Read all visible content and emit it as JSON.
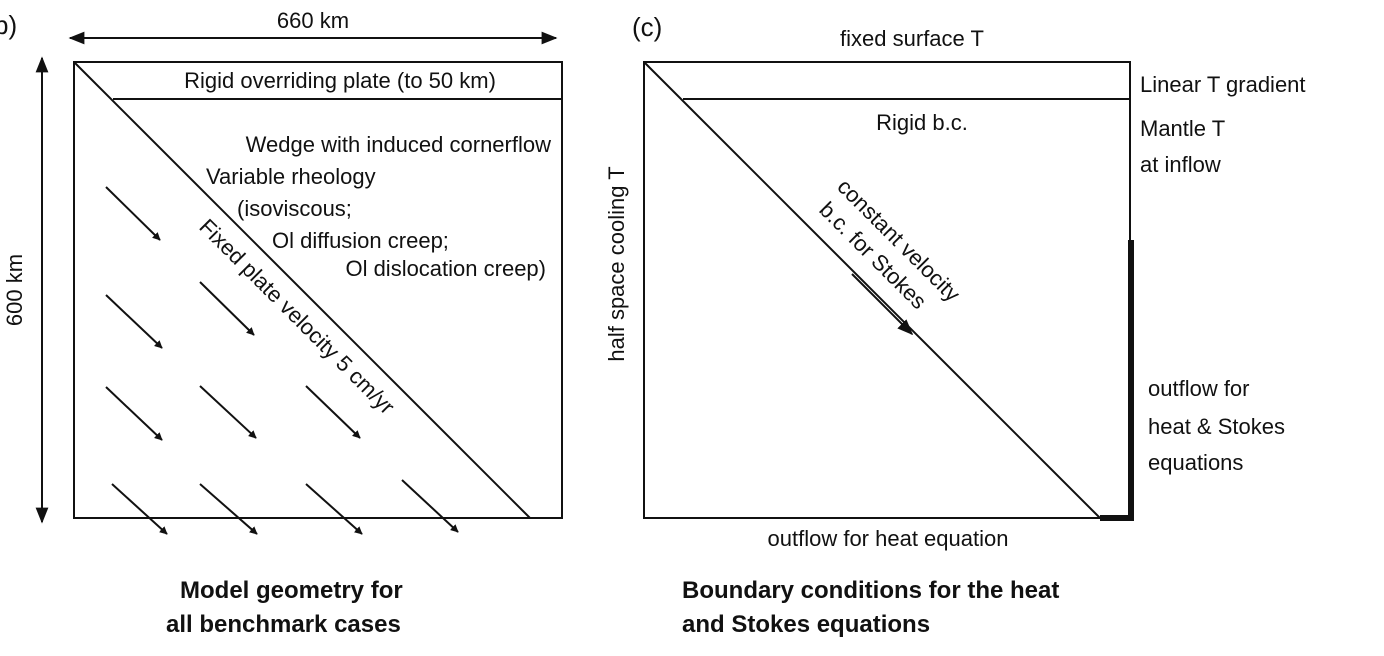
{
  "panel_b": {
    "panel_label": "b)",
    "width_label": "660 km",
    "height_label": "600 km",
    "plate_label": "Rigid overriding plate (to 50 km)",
    "wedge_lines": [
      "Wedge with induced cornerflow",
      "Variable rheology",
      "(isoviscous;",
      "Ol diffusion creep;",
      "Ol dislocation creep)"
    ],
    "slab_label": "Fixed plate velocity 5 cm/yr",
    "caption_lines": [
      "Model geometry for",
      "all benchmark cases"
    ]
  },
  "panel_c": {
    "panel_label": "(c)",
    "top_label": "fixed surface T",
    "left_label": "half space cooling T",
    "right_top_label": "Linear T gradient",
    "right_mid_lines": [
      "Mantle T",
      "at inflow"
    ],
    "rigid_label": "Rigid b.c.",
    "slab_lines": [
      "constant velocity",
      "b.c. for Stokes"
    ],
    "right_bottom_lines": [
      "outflow for",
      "heat & Stokes",
      "equations"
    ],
    "bottom_label": "outflow for heat equation",
    "caption_lines": [
      "Boundary conditions for the heat",
      "and Stokes equations"
    ]
  }
}
